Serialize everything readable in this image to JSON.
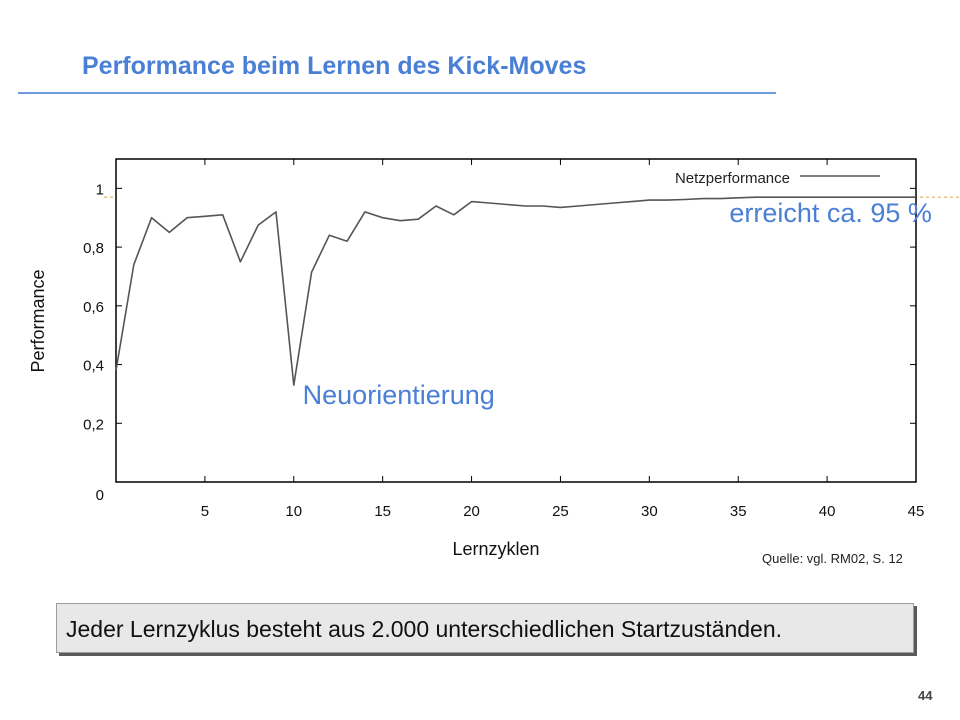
{
  "slide": {
    "title": "Performance beim Lernen des Kick-Moves",
    "source": "Quelle: vgl. RM02, S. 12",
    "callout": "Jeder Lernzyklus besteht aus 2.000 unterschiedlichen Startzuständen.",
    "page_number": "44"
  },
  "chart_data": {
    "type": "line",
    "xlabel": "Lernzyklen",
    "ylabel": "Performance",
    "xlim": [
      0,
      45
    ],
    "ylim": [
      0,
      1.1
    ],
    "x_ticks": [
      5,
      10,
      15,
      20,
      25,
      30,
      35,
      40,
      45
    ],
    "x_tick_labels": [
      "5",
      "10",
      "15",
      "20",
      "25",
      "30",
      "35",
      "40",
      "45"
    ],
    "y_ticks": [
      0,
      0.2,
      0.4,
      0.6,
      0.8,
      1
    ],
    "y_tick_labels": [
      "0",
      "0,2",
      "0,4",
      "0,6",
      "0,8",
      "1"
    ],
    "grid": false,
    "legend_position": "top-right",
    "series": [
      {
        "name": "Netzperformance",
        "color": "#555555",
        "x": [
          0,
          1,
          2,
          3,
          4,
          5,
          6,
          7,
          8,
          9,
          10,
          11,
          12,
          13,
          14,
          15,
          16,
          17,
          18,
          19,
          20,
          21,
          22,
          23,
          24,
          25,
          26,
          27,
          28,
          29,
          30,
          31,
          32,
          33,
          34,
          35,
          36,
          37,
          38,
          39,
          40,
          41,
          42,
          43,
          44,
          45
        ],
        "y": [
          0.38,
          0.74,
          0.9,
          0.85,
          0.9,
          0.905,
          0.91,
          0.75,
          0.875,
          0.92,
          0.33,
          0.715,
          0.84,
          0.82,
          0.92,
          0.9,
          0.89,
          0.895,
          0.94,
          0.91,
          0.955,
          0.95,
          0.945,
          0.94,
          0.94,
          0.935,
          0.94,
          0.945,
          0.95,
          0.955,
          0.96,
          0.96,
          0.962,
          0.965,
          0.965,
          0.968,
          0.97,
          0.97,
          0.97,
          0.97,
          0.97,
          0.97,
          0.97,
          0.97,
          0.97,
          0.97
        ]
      }
    ],
    "reference_line": {
      "y": 0.97,
      "color": "#e0b060",
      "style": "dashed"
    },
    "annotations": [
      {
        "text": "erreicht ca. 95 %",
        "x": 34.5,
        "y": 0.885,
        "color": "#4a7fd6"
      },
      {
        "text": "Neuorientierung",
        "x": 10.5,
        "y": 0.265,
        "color": "#4a7fd6"
      }
    ]
  }
}
